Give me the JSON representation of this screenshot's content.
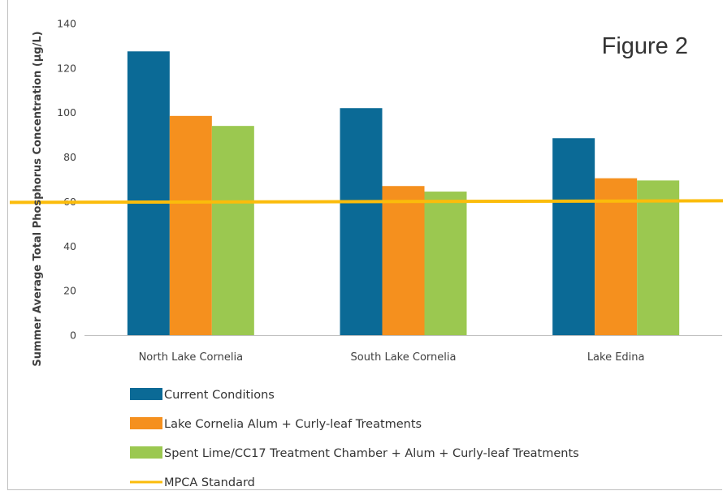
{
  "figure_label": "Figure 2",
  "chart_data": {
    "type": "bar",
    "categories": [
      "North Lake Cornelia",
      "South Lake Cornelia",
      "Lake Edina"
    ],
    "series": [
      {
        "name": "Current Conditions",
        "color": "#0b6a96",
        "values": [
          127.5,
          102,
          88.5
        ]
      },
      {
        "name": "Lake Cornelia Alum + Curly-leaf Treatments",
        "color": "#f5901e",
        "values": [
          98.5,
          67,
          70.5
        ]
      },
      {
        "name": "Spent Lime/CC17 Treatment Chamber + Alum + Curly-leaf Treatments",
        "color": "#9bc850",
        "values": [
          94,
          64.5,
          69.5
        ]
      }
    ],
    "reference_line": {
      "name": "MPCA Standard",
      "value": 60,
      "color": "#fbbc0b"
    },
    "ylabel": "Summer Average Total Phosphorus Concentration (µg/L)",
    "xlabel": "",
    "ylim": [
      0,
      140
    ],
    "yticks": [
      0,
      20,
      40,
      60,
      80,
      100,
      120,
      140
    ],
    "grid": false,
    "legend_position": "bottom-left"
  }
}
